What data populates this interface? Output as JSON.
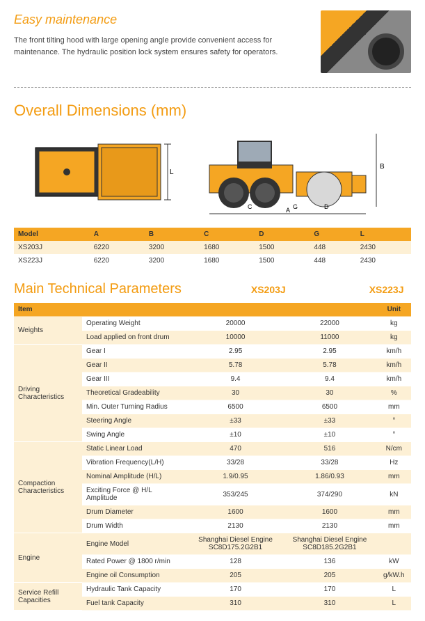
{
  "maintenance": {
    "title": "Easy maintenance",
    "text": "The front tilting hood with large opening angle provide convenient access for maintenance. The hydraulic position lock system ensures safety for operators."
  },
  "dimensions": {
    "title": "Overall Dimensions (mm)",
    "labels": {
      "L": "L",
      "B": "B",
      "A": "A",
      "C": "C",
      "D": "D",
      "G": "G"
    },
    "columns": [
      "Model",
      "A",
      "B",
      "C",
      "D",
      "G",
      "L"
    ],
    "rows": [
      [
        "XS203J",
        "6220",
        "3200",
        "1680",
        "1500",
        "448",
        "2430"
      ],
      [
        "XS223J",
        "6220",
        "3200",
        "1680",
        "1500",
        "448",
        "2430"
      ]
    ],
    "colors": {
      "header_bg": "#f5a623",
      "odd_bg": "#fdf0d5",
      "machine_fill": "#f5a623",
      "stroke": "#333333"
    }
  },
  "params": {
    "title": "Main Technical Parameters",
    "model1": "XS203J",
    "model2": "XS223J",
    "header": {
      "item": "Item",
      "unit": "Unit"
    },
    "groups": [
      {
        "name": "Weights",
        "rows": [
          {
            "p": "Operating Weight",
            "v1": "20000",
            "v2": "22000",
            "u": "kg"
          },
          {
            "p": "Load applied on front drum",
            "v1": "10000",
            "v2": "11000",
            "u": "kg"
          }
        ]
      },
      {
        "name": "Driving Characteristics",
        "rows": [
          {
            "p": "Gear I",
            "v1": "2.95",
            "v2": "2.95",
            "u": "km/h"
          },
          {
            "p": "Gear II",
            "v1": "5.78",
            "v2": "5.78",
            "u": "km/h"
          },
          {
            "p": "Gear III",
            "v1": "9.4",
            "v2": "9.4",
            "u": "km/h"
          },
          {
            "p": "Theoretical Gradeability",
            "v1": "30",
            "v2": "30",
            "u": "%"
          },
          {
            "p": "Min. Outer Turning Radius",
            "v1": "6500",
            "v2": "6500",
            "u": "mm"
          },
          {
            "p": "Steering Angle",
            "v1": "±33",
            "v2": "±33",
            "u": "°"
          },
          {
            "p": "Swing Angle",
            "v1": "±10",
            "v2": "±10",
            "u": "°"
          }
        ]
      },
      {
        "name": "Compaction Characteristics",
        "rows": [
          {
            "p": "Static Linear Load",
            "v1": "470",
            "v2": "516",
            "u": "N/cm"
          },
          {
            "p": "Vibration Frequency(L/H)",
            "v1": "33/28",
            "v2": "33/28",
            "u": "Hz"
          },
          {
            "p": "Nominal Amplitude (H/L)",
            "v1": "1.9/0.95",
            "v2": "1.86/0.93",
            "u": "mm"
          },
          {
            "p": "Exciting Force @ H/L Amplitude",
            "v1": "353/245",
            "v2": "374/290",
            "u": "kN"
          },
          {
            "p": "Drum Diameter",
            "v1": "1600",
            "v2": "1600",
            "u": "mm"
          },
          {
            "p": "Drum Width",
            "v1": "2130",
            "v2": "2130",
            "u": "mm"
          }
        ]
      },
      {
        "name": "Engine",
        "rows": [
          {
            "p": "Engine Model",
            "v1": "Shanghai Diesel Engine SC8D175.2G2B1",
            "v2": "Shanghai Diesel Engine SC8D185.2G2B1",
            "u": ""
          },
          {
            "p": "Rated Power @ 1800 r/min",
            "v1": "128",
            "v2": "136",
            "u": "kW"
          },
          {
            "p": "Engine oil Consumption",
            "v1": "205",
            "v2": "205",
            "u": "g/kW.h"
          }
        ]
      },
      {
        "name": "Service Refill Capacities",
        "rows": [
          {
            "p": "Hydraulic Tank Capacity",
            "v1": "170",
            "v2": "170",
            "u": "L"
          },
          {
            "p": "Fuel tank Capacity",
            "v1": "310",
            "v2": "310",
            "u": "L"
          }
        ]
      }
    ]
  }
}
